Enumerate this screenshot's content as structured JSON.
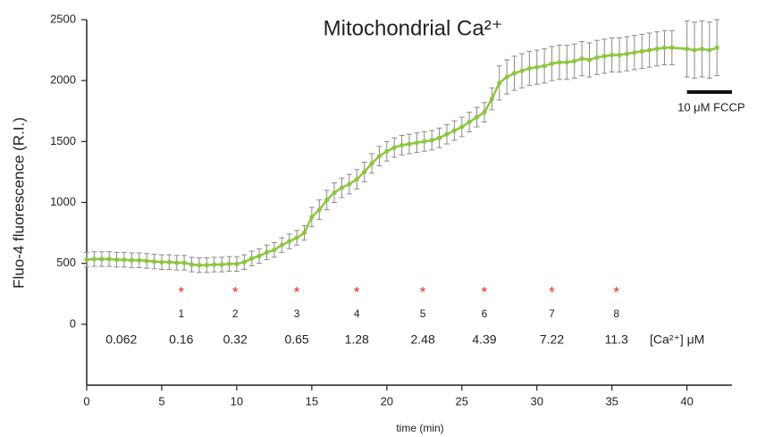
{
  "chart_data": {
    "type": "line",
    "title": "Mitochondrial Ca²⁺",
    "x_label": "time (min)",
    "y_label": "Fluo-4 fluorescence (R.I.)",
    "xlim": [
      0,
      43
    ],
    "ylim": [
      -500,
      2500
    ],
    "xticks": [
      0,
      5,
      10,
      15,
      20,
      25,
      30,
      35,
      40
    ],
    "yticks": [
      0,
      500,
      1000,
      1500,
      2000,
      2500
    ],
    "series": [
      {
        "color": "#8dc63f",
        "x": [
          0,
          0.5,
          1,
          1.5,
          2,
          2.5,
          3,
          3.5,
          4,
          4.5,
          5,
          5.5,
          6,
          6.5,
          7,
          7.5,
          8,
          8.5,
          9,
          9.5,
          10,
          10.5,
          11,
          11.5,
          12,
          12.5,
          13,
          13.5,
          14,
          14.5,
          15,
          15.5,
          16,
          16.5,
          17,
          17.5,
          18,
          18.5,
          19,
          19.5,
          20,
          20.5,
          21,
          21.5,
          22,
          22.5,
          23,
          23.5,
          24,
          24.5,
          25,
          25.5,
          26,
          26.5,
          27,
          27.5,
          28,
          28.5,
          29,
          29.5,
          30,
          30.5,
          31,
          31.5,
          32,
          32.5,
          33,
          33.5,
          34,
          34.5,
          35,
          35.5,
          36,
          36.5,
          37,
          37.5,
          38,
          38.5,
          39,
          40,
          40.5,
          41,
          41.5,
          42
        ],
        "values": [
          530,
          535,
          535,
          535,
          530,
          530,
          525,
          525,
          520,
          515,
          510,
          510,
          505,
          505,
          490,
          485,
          485,
          490,
          490,
          495,
          495,
          510,
          540,
          560,
          590,
          610,
          650,
          680,
          710,
          750,
          880,
          940,
          1020,
          1080,
          1120,
          1150,
          1190,
          1250,
          1320,
          1380,
          1420,
          1450,
          1470,
          1480,
          1490,
          1500,
          1510,
          1530,
          1560,
          1590,
          1620,
          1660,
          1700,
          1740,
          1850,
          1980,
          2030,
          2060,
          2080,
          2100,
          2110,
          2120,
          2140,
          2150,
          2150,
          2160,
          2180,
          2170,
          2190,
          2200,
          2210,
          2210,
          2220,
          2230,
          2240,
          2250,
          2260,
          2270,
          2270,
          2260,
          2250,
          2260,
          2250,
          2270
        ],
        "errors": [
          60,
          60,
          60,
          60,
          60,
          60,
          60,
          60,
          60,
          60,
          60,
          60,
          60,
          60,
          60,
          60,
          60,
          60,
          60,
          60,
          60,
          60,
          60,
          60,
          60,
          60,
          60,
          60,
          60,
          60,
          80,
          80,
          80,
          80,
          80,
          80,
          80,
          80,
          80,
          80,
          80,
          80,
          80,
          80,
          80,
          80,
          80,
          80,
          80,
          80,
          80,
          80,
          80,
          80,
          90,
          140,
          140,
          140,
          140,
          140,
          140,
          140,
          140,
          140,
          140,
          140,
          140,
          140,
          140,
          140,
          140,
          140,
          140,
          140,
          140,
          140,
          140,
          140,
          140,
          230,
          230,
          230,
          230,
          230
        ]
      }
    ],
    "addition_marker": "*",
    "additions": [
      {
        "label": "1",
        "time": 6.3,
        "concentration": "0.16"
      },
      {
        "label": "2",
        "time": 9.9,
        "concentration": "0.32"
      },
      {
        "label": "3",
        "time": 14,
        "concentration": "0.65"
      },
      {
        "label": "4",
        "time": 18,
        "concentration": "1.28"
      },
      {
        "label": "5",
        "time": 22.4,
        "concentration": "2.48"
      },
      {
        "label": "6",
        "time": 26.5,
        "concentration": "4.39"
      },
      {
        "label": "7",
        "time": 31,
        "concentration": "7.22"
      },
      {
        "label": "8",
        "time": 35.3,
        "concentration": "11.3"
      }
    ],
    "baseline_concentration": "0.062",
    "concentration_unit": "[Ca²⁺] μM",
    "fccp": {
      "label": "10 μM FCCP",
      "start": 40,
      "end": 43
    }
  }
}
